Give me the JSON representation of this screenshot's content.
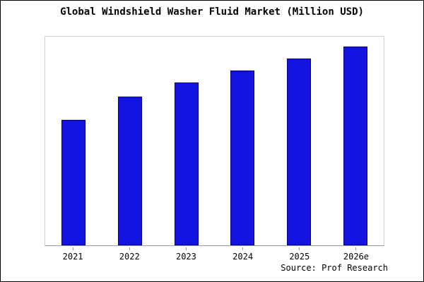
{
  "page": {
    "source": "Source: Prof Research"
  },
  "colors": {
    "bar_fill": "#1414e0",
    "bar_edge": "#00008b",
    "axis": "#9a9a9a",
    "text": "#000000",
    "background": "#ffffff"
  },
  "chart_data": {
    "type": "bar",
    "title": "Global Windshield Washer Fluid Market (Million USD)",
    "categories": [
      "2021",
      "2022",
      "2023",
      "2024",
      "2025",
      "2026e"
    ],
    "values": [
      63,
      75,
      82,
      88,
      94,
      100
    ],
    "xlabel": "",
    "ylabel": "",
    "ylim": [
      0,
      105
    ],
    "grid": false,
    "legend": "none",
    "y_axis_labels_visible": false,
    "bar_color": "#1414e0",
    "source": "Source: Prof Research"
  }
}
